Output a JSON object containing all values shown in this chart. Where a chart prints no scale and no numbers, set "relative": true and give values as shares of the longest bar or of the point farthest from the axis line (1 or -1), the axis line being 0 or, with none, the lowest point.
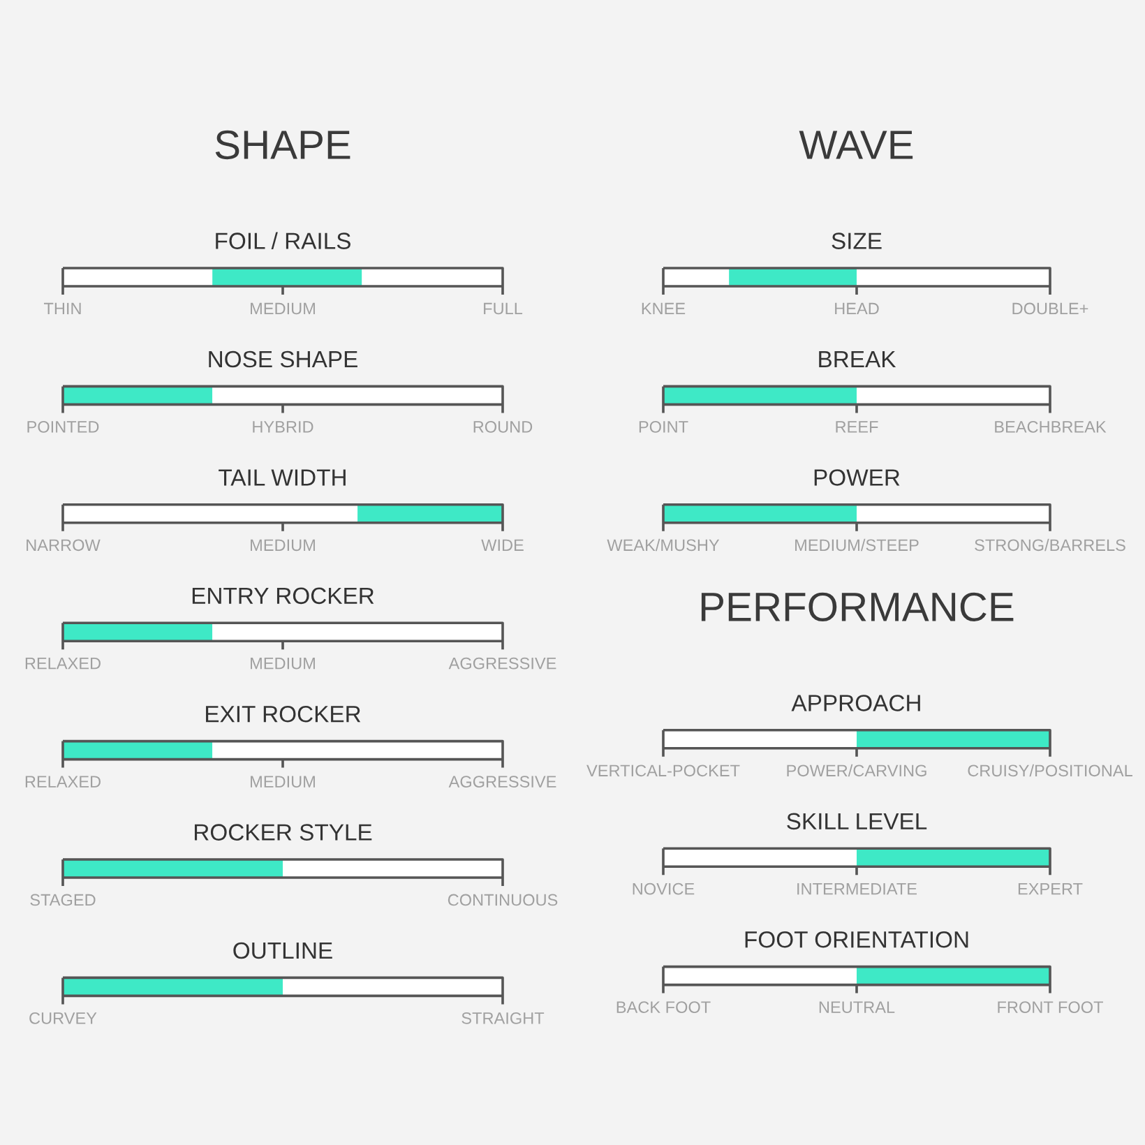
{
  "chart_data": [
    {
      "type": "bar",
      "orientation": "horizontal",
      "relative": true,
      "stacked": true,
      "title": "SHAPE",
      "categories": [
        "FOIL / RAILS",
        "NOSE SHAPE",
        "TAIL WIDTH",
        "ENTRY ROCKER",
        "EXIT ROCKER",
        "ROCKER STYLE",
        "OUTLINE"
      ],
      "series": [
        {
          "color": "#ffffff",
          "values": [
            0.34,
            null,
            0.67,
            null,
            null,
            null,
            null
          ]
        },
        {
          "color": "#3ee9c6",
          "values": [
            0.34,
            0.34,
            0.33,
            0.34,
            0.34,
            0.5,
            0.5
          ]
        },
        {
          "color": "#ffffff",
          "values": [
            0.32,
            0.66,
            null,
            0.66,
            0.66,
            0.5,
            0.5
          ]
        }
      ],
      "annotations": [
        {
          "text": "THIN",
          "x": 0,
          "y": "FOIL / RAILS"
        },
        "MEDIUM",
        {
          "text": "FULL",
          "x": 1,
          "y": "FOIL / RAILS"
        },
        {
          "text": "POINTED",
          "x": 0,
          "y": "NOSE SHAPE"
        },
        "HYBRID",
        {
          "text": "ROUND",
          "x": 1,
          "y": "NOSE SHAPE"
        },
        {
          "text": "NARROW",
          "x": 0,
          "y": "TAIL WIDTH"
        },
        "MEDIUM",
        {
          "text": "WIDE",
          "x": 1,
          "y": "TAIL WIDTH"
        },
        {
          "text": "RELAXED",
          "x": 0,
          "y": "ENTRY ROCKER"
        },
        "MEDIUM",
        {
          "text": "AGGRESSIVE",
          "x": 1,
          "y": "ENTRY ROCKER"
        },
        {
          "text": "RELAXED",
          "x": 0,
          "y": "EXIT ROCKER"
        },
        "MEDIUM",
        {
          "text": "AGGRESSIVE",
          "x": 1,
          "y": "EXIT ROCKER"
        },
        {
          "text": "STAGED",
          "x": 0,
          "y": "ROCKER STYLE"
        },
        {
          "text": "CONTINUOUS",
          "x": 1,
          "y": "ROCKER STYLE"
        },
        {
          "text": "CURVEY",
          "x": 0,
          "y": "OUTLINE"
        },
        {
          "text": "STRAIGHT",
          "x": 1,
          "y": "OUTLINE"
        }
      ]
    },
    {
      "type": "bar",
      "orientation": "horizontal",
      "relative": true,
      "stacked": true,
      "title": "WAVE",
      "categories": [
        "SIZE",
        "BREAK",
        "POWER"
      ],
      "series": [
        {
          "color": "#ffffff",
          "values": [
            0.17,
            null,
            null
          ]
        },
        {
          "color": "#3ee9c6",
          "values": [
            0.33,
            0.5,
            0.5
          ]
        },
        {
          "color": "#ffffff",
          "values": [
            0.5,
            0.5,
            0.5
          ]
        }
      ],
      "annotations": [
        {
          "text": "KNEE",
          "x": 0,
          "y": "SIZE"
        },
        {
          "text": "HEAD",
          "x": 0.5,
          "y": "SIZE"
        },
        {
          "text": "DOUBLE+",
          "x": 1,
          "y": "SIZE"
        },
        {
          "text": "POINT",
          "x": 0,
          "y": "BREAK"
        },
        {
          "text": "REEF",
          "x": 0.5,
          "y": "BREAK"
        },
        {
          "text": "BEACHBREAK",
          "x": 1,
          "y": "BREAK"
        },
        {
          "text": "WEAK/MUSHY",
          "x": 0,
          "y": "POWER"
        },
        {
          "text": "MEDIUM/STEEP",
          "x": 0.5,
          "y": "POWER"
        },
        {
          "text": "STRONG/BARRELS",
          "x": 1,
          "y": "POWER"
        }
      ]
    },
    {
      "type": "bar",
      "orientation": "horizontal",
      "relative": true,
      "stacked": true,
      "title": "PERFORMANCE",
      "categories": [
        "APPROACH",
        "SKILL LEVEL",
        "FOOT ORIENTATION"
      ],
      "series": [
        {
          "color": "#ffffff",
          "values": [
            0.5,
            0.5,
            0.5
          ]
        },
        {
          "color": "#3ee9c6",
          "values": [
            0.5,
            0.5,
            0.5
          ]
        }
      ],
      "annotations": [
        {
          "text": "VERTICAL-POCKET",
          "x": 0,
          "y": "APPROACH"
        },
        {
          "text": "POWER/CARVING",
          "x": 0.5,
          "y": "APPROACH"
        },
        {
          "text": "CRUISY/POSITIONAL",
          "x": 1,
          "y": "APPROACH"
        },
        {
          "text": "NOVICE",
          "x": 0,
          "y": "SKILL LEVEL"
        },
        {
          "text": "INTERMEDIATE",
          "x": 0.5,
          "y": "SKILL LEVEL"
        },
        {
          "text": "EXPERT",
          "x": 1,
          "y": "SKILL LEVEL"
        },
        {
          "text": "BACK FOOT",
          "x": 0,
          "y": "FOOT ORIENTATION"
        },
        {
          "text": "NEUTRAL",
          "x": 0.5,
          "y": "FOOT ORIENTATION"
        },
        {
          "text": "FRONT FOOT",
          "x": 1,
          "y": "FOOT ORIENTATION"
        }
      ]
    }
  ]
}
